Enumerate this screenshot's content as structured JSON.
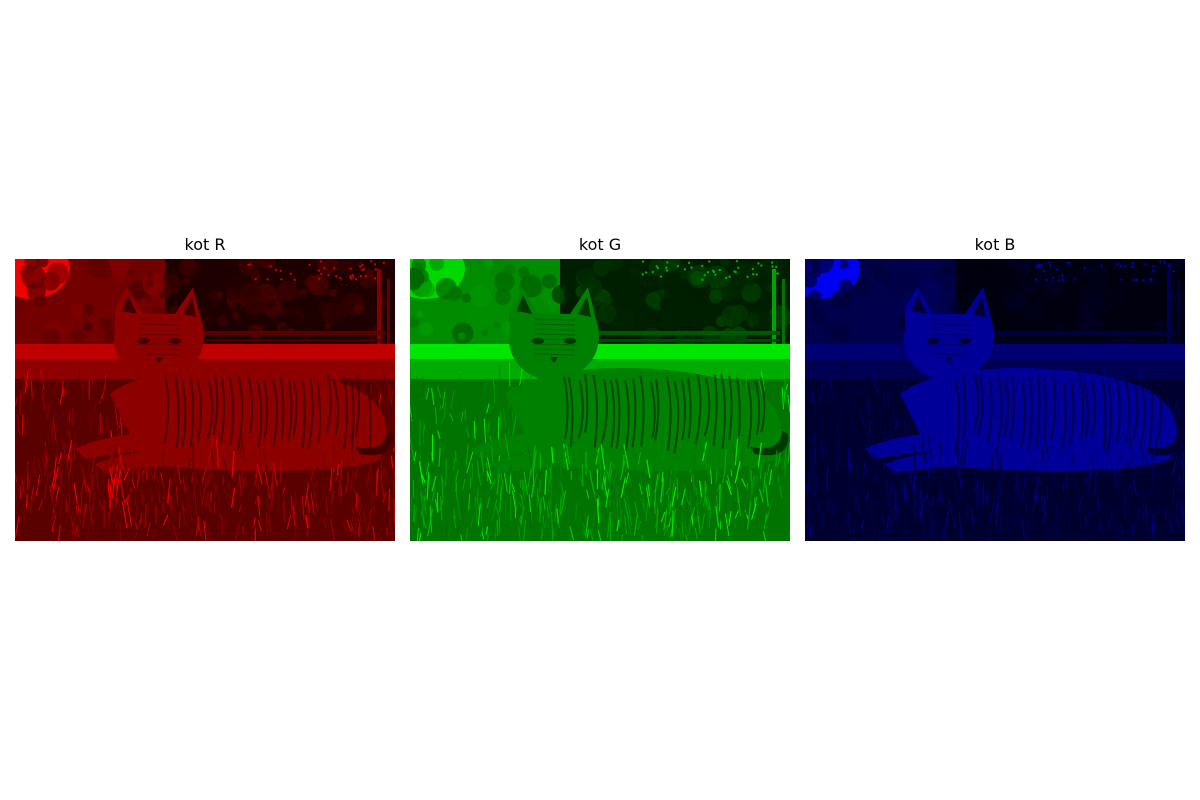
{
  "panels": [
    {
      "title": "kot R",
      "channel": "red",
      "tint": "#ff0000",
      "dark": "#1a0000"
    },
    {
      "title": "kot G",
      "channel": "green",
      "tint": "#00ff00",
      "dark": "#001a00"
    },
    {
      "title": "kot B",
      "channel": "blue",
      "tint": "#0000ff",
      "dark": "#00001a"
    }
  ],
  "image": {
    "subject": "cat lying on grass",
    "icons": [
      "cat-icon",
      "grass-icon",
      "tree-icon",
      "fence-icon"
    ]
  }
}
